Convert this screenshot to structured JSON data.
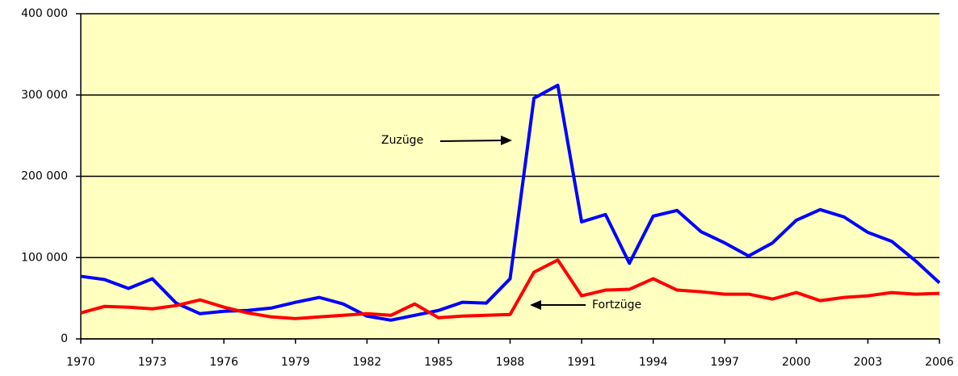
{
  "chart_data": {
    "type": "line",
    "x": [
      1970,
      1971,
      1972,
      1973,
      1974,
      1975,
      1976,
      1977,
      1978,
      1979,
      1980,
      1981,
      1982,
      1983,
      1984,
      1985,
      1986,
      1987,
      1988,
      1989,
      1990,
      1991,
      1992,
      1993,
      1994,
      1995,
      1996,
      1997,
      1998,
      1999,
      2000,
      2001,
      2002,
      2003,
      2004,
      2005,
      2006
    ],
    "series": [
      {
        "name": "Zuzüge",
        "color": "#0000ff",
        "values": [
          77000,
          73000,
          62000,
          74000,
          44000,
          31000,
          34000,
          35000,
          38000,
          45000,
          51000,
          43000,
          28000,
          23000,
          29000,
          35000,
          45000,
          44000,
          74000,
          296000,
          312000,
          144000,
          153000,
          93000,
          151000,
          158000,
          132000,
          118000,
          102000,
          118000,
          146000,
          159000,
          150000,
          131000,
          120000,
          96000,
          69000
        ]
      },
      {
        "name": "Fortzüge",
        "color": "#ff0000",
        "values": [
          32000,
          40000,
          39000,
          37000,
          41000,
          48000,
          39000,
          32000,
          27000,
          25000,
          27000,
          29000,
          31000,
          29000,
          43000,
          26000,
          28000,
          29000,
          30000,
          82000,
          97000,
          53000,
          60000,
          61000,
          74000,
          60000,
          58000,
          55000,
          55000,
          49000,
          57000,
          47000,
          51000,
          53000,
          57000,
          55000,
          56000
        ]
      }
    ],
    "xlim": [
      1970,
      2006
    ],
    "xticks": [
      1970,
      1973,
      1976,
      1979,
      1982,
      1985,
      1988,
      1991,
      1994,
      1997,
      2000,
      2003,
      2006
    ],
    "ylim": [
      0,
      400000
    ],
    "yticks": [
      0,
      {
        "value": 100000,
        "label": "100 000"
      },
      {
        "value": 200000,
        "label": "200 000"
      },
      {
        "value": 300000,
        "label": "300 000"
      },
      {
        "value": 400000,
        "label": "400 000"
      }
    ],
    "grid": true
  }
}
